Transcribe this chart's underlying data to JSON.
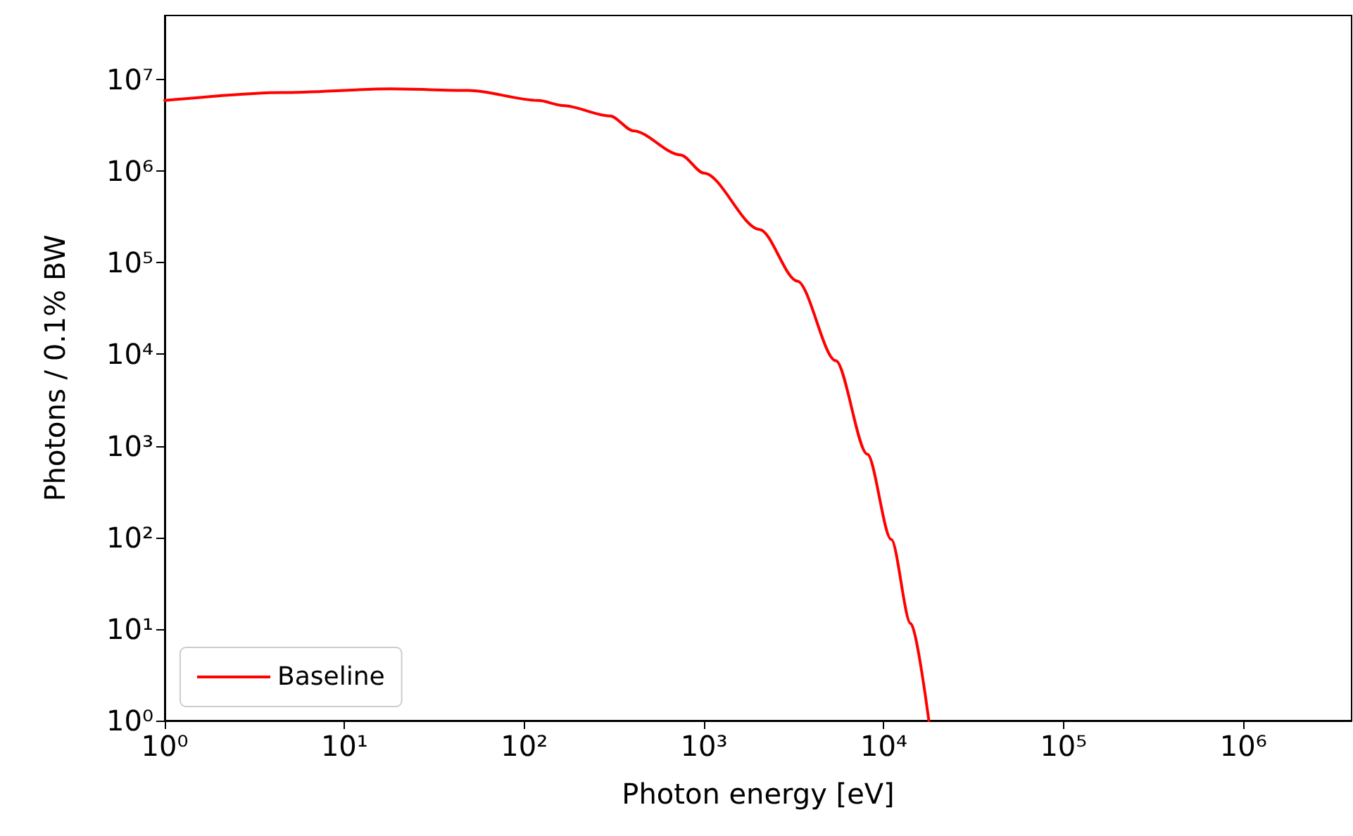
{
  "chart_data": {
    "type": "line",
    "xlabel": "Photon energy [eV]",
    "ylabel": "Photons / 0.1% BW",
    "log": "xy",
    "grid": false,
    "legend": "bottom left",
    "marker": "none",
    "line_style": "solid",
    "xlim": [
      1,
      4000000
    ],
    "ylim": [
      1,
      50000000
    ],
    "xticks": [
      {
        "value": 1,
        "label": "10⁰"
      },
      {
        "value": 10,
        "label": "10¹"
      },
      {
        "value": 100,
        "label": "10²"
      },
      {
        "value": 1000,
        "label": "10³"
      },
      {
        "value": 10000,
        "label": "10⁴"
      },
      {
        "value": 100000,
        "label": "10⁵"
      },
      {
        "value": 1000000,
        "label": "10⁶"
      }
    ],
    "yticks": [
      {
        "value": 1,
        "label": "10⁰"
      },
      {
        "value": 10,
        "label": "10¹"
      },
      {
        "value": 100,
        "label": "10²"
      },
      {
        "value": 1000,
        "label": "10³"
      },
      {
        "value": 10000,
        "label": "10⁴"
      },
      {
        "value": 100000,
        "label": "10⁵"
      },
      {
        "value": 1000000,
        "label": "10⁶"
      },
      {
        "value": 10000000,
        "label": "10⁷"
      }
    ],
    "x": [
      1,
      4.5,
      18,
      49,
      120,
      164,
      300,
      405,
      740,
      1000,
      2040,
      3300,
      5400,
      8100,
      11000,
      14100,
      17800
    ],
    "series": [
      {
        "name": "Baseline",
        "color": "#ff0000",
        "values": [
          5900000,
          7200000,
          7900000,
          7600000,
          5900000,
          5200000,
          4000000,
          2750000,
          1500000,
          950000,
          230000,
          63000,
          8500,
          810,
          95,
          11.5,
          1
        ]
      }
    ]
  }
}
